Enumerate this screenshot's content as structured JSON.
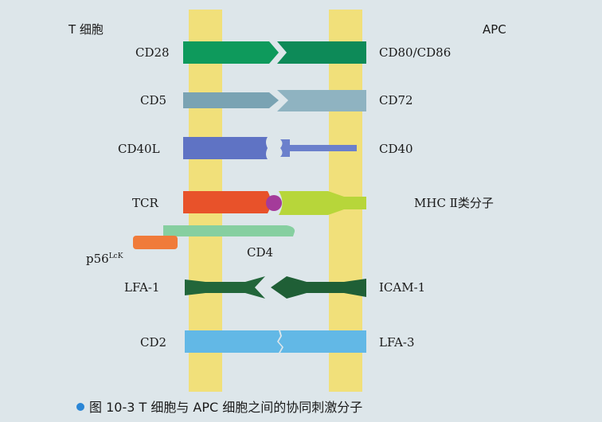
{
  "headers": {
    "left": "T 细胞",
    "right": "APC"
  },
  "labels": {
    "cd28": "CD28",
    "cd80_cd86": "CD80/CD86",
    "cd5": "CD5",
    "cd72": "CD72",
    "cd40l": "CD40L",
    "cd40": "CD40",
    "tcr": "TCR",
    "mhc2": "MHC Ⅱ类分子",
    "p56_base": "p56",
    "p56_sup": "LcK",
    "cd4": "CD4",
    "lfa1": "LFA-1",
    "icam1": "ICAM-1",
    "cd2": "CD2",
    "lfa3": "LFA-3"
  },
  "caption": {
    "text": "图 10-3   T 细胞与 APC 细胞之间的协同刺激分子"
  },
  "colors": {
    "background": "#dde6ea",
    "membrane": "#f1e07a",
    "cd28": "#0e9a5c",
    "cd80": "#0d8a58",
    "cd5": "#7aa3b3",
    "cd72": "#8fb3c1",
    "cd40l": "#5f73c4",
    "cd40": "#6b80cc",
    "tcr": "#e8522a",
    "mhc": "#b7d63a",
    "peptide": "#a43b9a",
    "cd4": "#86cfa0",
    "p56": "#f07b3a",
    "lfa1": "#22663a",
    "icam1": "#1f5f36",
    "cd2": "#62b8e6",
    "lfa3": "#62b8e6",
    "caption_dot": "#2a86d6"
  }
}
